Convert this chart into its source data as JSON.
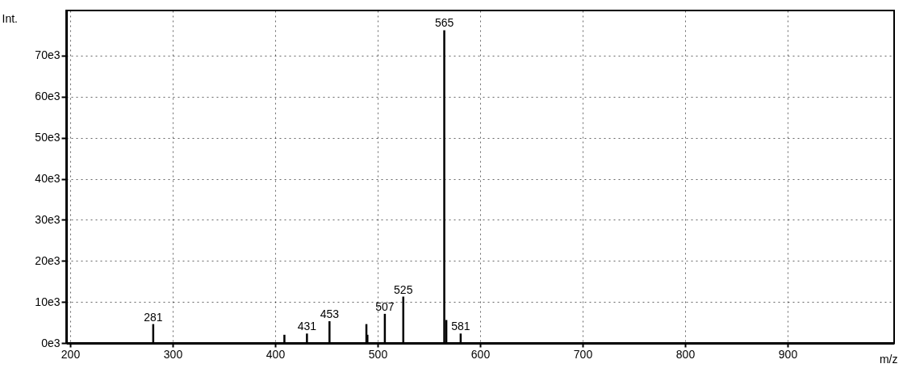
{
  "chart_data": {
    "type": "bar",
    "xlabel": "m/z",
    "ylabel": "Int.",
    "x": [
      281,
      409,
      431,
      453,
      489,
      490,
      507,
      525,
      565,
      567,
      581
    ],
    "values": [
      4600,
      2000,
      2300,
      5300,
      4600,
      2000,
      7100,
      11300,
      76200,
      5600,
      2300
    ],
    "annotations": [
      {
        "text": "281",
        "x": 281,
        "y": 4600
      },
      {
        "text": "431",
        "x": 431,
        "y": 2300
      },
      {
        "text": "453",
        "x": 453,
        "y": 5300
      },
      {
        "text": "507",
        "x": 507,
        "y": 7100
      },
      {
        "text": "525",
        "x": 525,
        "y": 11300
      },
      {
        "text": "565",
        "x": 565,
        "y": 76200
      },
      {
        "text": "581",
        "x": 581,
        "y": 2300
      }
    ],
    "color": "#000000",
    "xlim": [
      200,
      1000
    ],
    "xticks": [
      200,
      300,
      400,
      500,
      600,
      700,
      800,
      900
    ],
    "ylim": [
      0,
      81000
    ],
    "yticks": [
      {
        "value": 0,
        "label": "0e3"
      },
      {
        "value": 10000,
        "label": "10e3"
      },
      {
        "value": 20000,
        "label": "20e3"
      },
      {
        "value": 30000,
        "label": "30e3"
      },
      {
        "value": 40000,
        "label": "40e3"
      },
      {
        "value": 50000,
        "label": "50e3"
      },
      {
        "value": 60000,
        "label": "60e3"
      },
      {
        "value": 70000,
        "label": "70e3"
      }
    ],
    "grid": true
  }
}
